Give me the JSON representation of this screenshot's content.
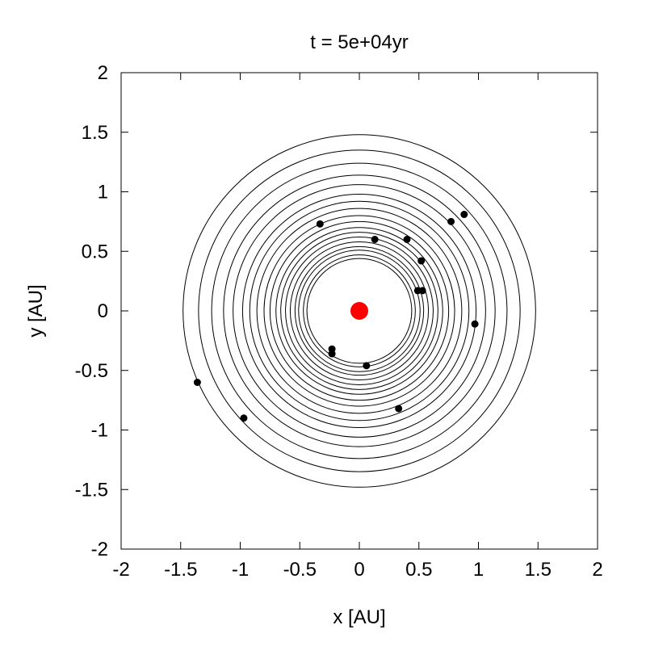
{
  "chart_data": {
    "type": "scatter",
    "title": "t = 5e+04yr",
    "xlabel": "x [AU]",
    "ylabel": "y [AU]",
    "xlim": [
      -2,
      2
    ],
    "ylim": [
      -2,
      2
    ],
    "xticks": [
      -2,
      -1.5,
      -1,
      -0.5,
      0,
      0.5,
      1,
      1.5,
      2
    ],
    "yticks": [
      -2,
      -1.5,
      -1,
      -0.5,
      0,
      0.5,
      1,
      1.5,
      2
    ],
    "xtick_labels": [
      "-2",
      "-1.5",
      "-1",
      "-0.5",
      "0",
      "0.5",
      "1",
      "1.5",
      "2"
    ],
    "ytick_labels": [
      "-2",
      "-1.5",
      "-1",
      "-0.5",
      "0",
      "0.5",
      "1",
      "1.5",
      "2"
    ],
    "grid": false,
    "central_star": {
      "x": 0,
      "y": 0,
      "color": "#ff0000"
    },
    "orbit_radii": [
      0.44,
      0.47,
      0.51,
      0.54,
      0.58,
      0.62,
      0.66,
      0.7,
      0.75,
      0.8,
      0.86,
      0.92,
      0.98,
      1.06,
      1.14,
      1.24,
      1.35,
      1.48
    ],
    "bodies": [
      {
        "x": -0.33,
        "y": 0.73
      },
      {
        "x": 0.13,
        "y": 0.6
      },
      {
        "x": 0.4,
        "y": 0.6
      },
      {
        "x": 0.77,
        "y": 0.75
      },
      {
        "x": 0.88,
        "y": 0.81
      },
      {
        "x": 0.52,
        "y": 0.42
      },
      {
        "x": 0.49,
        "y": 0.17
      },
      {
        "x": 0.53,
        "y": 0.17
      },
      {
        "x": 0.97,
        "y": -0.11
      },
      {
        "x": -0.23,
        "y": -0.32
      },
      {
        "x": -0.23,
        "y": -0.36
      },
      {
        "x": 0.06,
        "y": -0.46
      },
      {
        "x": 0.33,
        "y": -0.82
      },
      {
        "x": -0.97,
        "y": -0.9
      },
      {
        "x": -1.36,
        "y": -0.6
      }
    ]
  }
}
